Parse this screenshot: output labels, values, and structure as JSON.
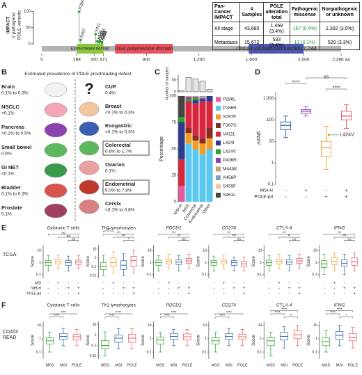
{
  "panel_a": {
    "label": "A",
    "ylabel": [
      "IMPACT",
      "# pathogenic",
      "POLE variants"
    ],
    "ylim": [
      0,
      110
    ],
    "yticks": [
      0,
      50,
      100
    ],
    "xlim": [
      0,
      2286
    ],
    "xticks": [
      0,
      268,
      400,
      471,
      800,
      {
        "value": 1200,
        "label": "1,200"
      },
      {
        "value": 1600,
        "label": "1,600"
      },
      {
        "value": 2000,
        "label": "2,000"
      },
      {
        "value": 2286,
        "label": "2,286 aa"
      }
    ],
    "lollipop_color": "#2ca02c",
    "lollipops": [
      {
        "label": "P286",
        "pos": 286,
        "count": 100
      },
      {
        "label": "S297",
        "pos": 297,
        "count": 12
      },
      {
        "label": "V411",
        "pos": 411,
        "count": 30
      },
      {
        "label": "L424",
        "pos": 424,
        "count": 8
      },
      {
        "label": "P436",
        "pos": 436,
        "count": 6
      },
      {
        "label": "M444",
        "pos": 444,
        "count": 10
      },
      {
        "label": "A456",
        "pos": 456,
        "count": 5
      },
      {
        "label": "S459",
        "pos": 459,
        "count": 4
      },
      {
        "label": "S461",
        "pos": 461,
        "count": 5
      }
    ],
    "domains": [
      {
        "name": "Exonuclease domain",
        "start": 268,
        "end": 471,
        "color": "#8cc63f"
      },
      {
        "name": "DNA polymerase domain",
        "start": 560,
        "end": 1000,
        "color": "#e8505b"
      },
      {
        "name": "Domain of unknown function 1,744",
        "start": 1580,
        "end": 2000,
        "color": "#4a56b0"
      }
    ],
    "table": {
      "header": [
        "Pan-Cancer IMPACT",
        "# Samples",
        "POLE alteration total",
        "Pathogenic missense",
        "Nonpathogenic or unknown"
      ],
      "rows": [
        [
          "All stage",
          "43,680",
          "1,469 (3.4%)",
          "167 (0.4%)",
          "1,302 (3.0%)"
        ],
        [
          "Metastasis",
          "15,672",
          "533 (3.4%)",
          "13 (0.1%)",
          "520 (3.3%)"
        ]
      ]
    }
  },
  "panel_b": {
    "label": "B",
    "title": "Estimated prevalence of POLE proofreading defect",
    "unknown_icon": "?",
    "left": [
      {
        "name": "Brain",
        "value": "0.1% to 0.3%",
        "color": "#f2f2f2"
      },
      {
        "name": "NSCLC",
        "value": "<0.1%",
        "color": "#f4a6b5"
      },
      {
        "name": "Pancreas",
        "value": "<0.1% to 0.5%",
        "color": "#8e44ad"
      },
      {
        "name": "Small bowel",
        "value": "0.6%",
        "color": "#5cb85c"
      },
      {
        "name": "GI NET",
        "value": "<0.1%",
        "color": "#3a9a4a"
      },
      {
        "name": "Bladder",
        "value": "0.1% to 0.3%",
        "color": "#d9534f"
      },
      {
        "name": "Prostate",
        "value": "0.1%",
        "color": "#a04060"
      }
    ],
    "right": [
      {
        "name": "CUP",
        "value": "0.4%"
      },
      {
        "name": "Breast",
        "value": "<0.1% to 0.3%",
        "color": "#f3c6a0"
      },
      {
        "name": "Esogastric",
        "value": "<0.1% to 0.3%",
        "color": "#3a5fb0"
      },
      {
        "name": "Colorectal",
        "value": "0.6% to 1.7%",
        "color": "#5cb85c",
        "boxed": true
      },
      {
        "name": "Ovarian",
        "value": "0.1%",
        "color": "#e8a0a0"
      },
      {
        "name": "Endometrial",
        "value": "5.0% to 7.8%",
        "color": "#c0392b",
        "boxed": true
      },
      {
        "name": "Cervix",
        "value": "<0.1% to 0.8%",
        "color": "#d98080"
      }
    ]
  },
  "chart_data": {
    "type": "stacked_bar",
    "label": "C",
    "categories": [
      "MSI-H",
      "MSS",
      "Colorectal",
      "Endometrial",
      "Other"
    ],
    "samples": [
      5,
      60,
      55,
      45,
      10
    ],
    "samples_color": "#e6e6e6",
    "samples_label": "Number of samples",
    "samples_ylim": [
      0,
      70
    ],
    "samples_yticks": [
      0,
      50
    ],
    "ylabel": "Percentage",
    "ylim": [
      0,
      100
    ],
    "yticks": [
      0,
      25,
      50,
      75,
      100
    ],
    "series": [
      {
        "name": "P286L",
        "color": "#e75aa0",
        "values": [
          15,
          0,
          0,
          0,
          0
        ]
      },
      {
        "name": "P286R",
        "color": "#5bc8ef",
        "values": [
          0,
          55,
          50,
          45,
          50
        ]
      },
      {
        "name": "S297F",
        "color": "#f39c24",
        "values": [
          0,
          10,
          8,
          10,
          10
        ]
      },
      {
        "name": "F367S",
        "color": "#8b2c24",
        "values": [
          0,
          5,
          5,
          5,
          10
        ]
      },
      {
        "name": "V411L",
        "color": "#d7263d",
        "values": [
          25,
          25,
          30,
          35,
          25
        ]
      },
      {
        "name": "L424I",
        "color": "#2b3b8f",
        "values": [
          35,
          0,
          3,
          2,
          5
        ]
      },
      {
        "name": "L424V",
        "color": "#2ca02c",
        "values": [
          5,
          2,
          2,
          0,
          0
        ]
      },
      {
        "name": "P436R",
        "color": "#8e44ad",
        "values": [
          0,
          2,
          1,
          1,
          0
        ]
      },
      {
        "name": "M444K",
        "color": "#c4a27a",
        "values": [
          0,
          1,
          1,
          1,
          0
        ]
      },
      {
        "name": "A456P",
        "color": "#7f9fbf",
        "values": [
          0,
          0,
          0,
          1,
          0
        ]
      },
      {
        "name": "S459F",
        "color": "#f7c6a0",
        "values": [
          0,
          0,
          0,
          0,
          0
        ]
      },
      {
        "name": "S461L",
        "color": "#444444",
        "values": [
          20,
          0,
          0,
          0,
          0
        ]
      }
    ]
  },
  "panel_d": {
    "label": "D",
    "ylabel": "mt/Mb",
    "log": true,
    "ylim": [
      0.1,
      2000
    ],
    "yticks": [
      0.1,
      1,
      10,
      100,
      {
        "value": 1000,
        "label": "1,000"
      }
    ],
    "colors": [
      "#2b5fa8",
      "#8e44ad",
      "#f39c24",
      "#e8505b"
    ],
    "boxes": [
      [
        15,
        35,
        55,
        80,
        150
      ],
      [
        150,
        200,
        250,
        300,
        400
      ],
      [
        0.5,
        2,
        5,
        10,
        50
      ],
      [
        40,
        100,
        150,
        250,
        500
      ]
    ],
    "rows": [
      {
        "name": "MSI-H",
        "values": [
          "-",
          "+",
          "-",
          "+"
        ]
      },
      {
        "name": "POLE-pd",
        "values": [
          "-",
          "-",
          "+",
          "+"
        ]
      }
    ],
    "brackets": [
      {
        "from": 1,
        "to": 3,
        "text": "ns"
      },
      {
        "from": 0,
        "to": 1,
        "text": "****"
      },
      {
        "from": 2,
        "to": 3,
        "text": "****"
      }
    ],
    "callout": {
      "text": "L424V",
      "group": 2,
      "value": 20
    }
  },
  "panel_e": {
    "label": "E",
    "row_label": [
      "TCGA"
    ],
    "ylabel": "Score",
    "colors": [
      "#2ca02c",
      "#f39c24",
      "#2b5fa8",
      "#e8505b"
    ],
    "rows": [
      {
        "name": "MSI",
        "values": [
          "-",
          "+",
          "-",
          "-"
        ]
      },
      {
        "name": "TMB-H",
        "values": [
          "-",
          "-",
          "+",
          "+"
        ]
      },
      {
        "name": "POLE-pd",
        "values": [
          "-",
          "-",
          "-",
          "+"
        ]
      }
    ],
    "panels": [
      {
        "title": "Cytotoxic T cells",
        "italic": false,
        "ylim": [
          0.05,
          30
        ],
        "yticks": [
          0.1,
          1,
          10
        ],
        "boxes": [
          [
            0.2,
            0.6,
            1,
            1.5,
            4
          ],
          [
            0.3,
            0.8,
            1.2,
            1.8,
            4
          ],
          [
            0.2,
            0.6,
            1,
            1.5,
            3.5
          ],
          [
            0.3,
            0.7,
            1.1,
            1.6,
            4
          ]
        ],
        "brackets": [
          {
            "from": 0,
            "to": 3,
            "text": "ns"
          },
          {
            "from": 1,
            "to": 3,
            "text": "ns"
          },
          {
            "from": 2,
            "to": 3,
            "text": "ns"
          }
        ]
      },
      {
        "title": "Th1 lymphocytes",
        "italic": false,
        "ylim": [
          0.005,
          30
        ],
        "yticks": [
          0.01,
          0.1,
          1,
          10
        ],
        "boxes": [
          [
            0.01,
            0.05,
            0.1,
            0.3,
            2
          ],
          [
            0.02,
            0.1,
            0.3,
            1,
            5
          ],
          [
            0.01,
            0.05,
            0.15,
            0.5,
            3
          ],
          [
            0.02,
            0.1,
            0.5,
            1.5,
            8
          ]
        ],
        "brackets": [
          {
            "from": 0,
            "to": 1,
            "text": "***"
          },
          {
            "from": 0,
            "to": 3,
            "text": "***"
          },
          {
            "from": 1,
            "to": 3,
            "text": "***"
          },
          {
            "from": 2,
            "to": 3,
            "text": "*"
          }
        ]
      },
      {
        "title": "PDCD1",
        "italic": true,
        "ylim": [
          0.05,
          30
        ],
        "yticks": [
          0.1,
          1,
          10
        ],
        "boxes": [
          [
            0.2,
            0.6,
            1,
            1.6,
            4
          ],
          [
            0.3,
            0.8,
            1.3,
            2,
            5
          ],
          [
            0.2,
            0.7,
            1.1,
            1.7,
            4
          ],
          [
            0.3,
            0.9,
            1.4,
            2.2,
            5
          ]
        ],
        "brackets": [
          {
            "from": 0,
            "to": 3,
            "text": "***"
          },
          {
            "from": 1,
            "to": 3,
            "text": "**"
          },
          {
            "from": 2,
            "to": 3,
            "text": "ns"
          }
        ]
      },
      {
        "title": "CD274",
        "italic": true,
        "ylim": [
          0.05,
          30
        ],
        "yticks": [
          0.1,
          1,
          10
        ],
        "boxes": [
          [
            0.2,
            0.6,
            1,
            1.5,
            3.5
          ],
          [
            0.3,
            0.8,
            1.3,
            2,
            4.5
          ],
          [
            0.2,
            0.6,
            1,
            1.5,
            3
          ],
          [
            0.2,
            0.5,
            0.8,
            1.3,
            3
          ]
        ],
        "brackets": [
          {
            "from": 0,
            "to": 3,
            "text": "***"
          },
          {
            "from": 1,
            "to": 3,
            "text": "***"
          },
          {
            "from": 2,
            "to": 3,
            "text": "ns"
          }
        ]
      },
      {
        "title": "CTLA-4",
        "italic": true,
        "ylim": [
          0.05,
          30
        ],
        "yticks": [
          0.1,
          1,
          10
        ],
        "boxes": [
          [
            0.2,
            0.6,
            1,
            1.6,
            4
          ],
          [
            0.3,
            0.8,
            1.3,
            2,
            5
          ],
          [
            0.2,
            0.7,
            1.1,
            1.7,
            4
          ],
          [
            0.3,
            0.9,
            1.4,
            2.2,
            5
          ]
        ],
        "brackets": [
          {
            "from": 0,
            "to": 3,
            "text": "***"
          },
          {
            "from": 1,
            "to": 3,
            "text": "**"
          },
          {
            "from": 2,
            "to": 3,
            "text": "ns"
          }
        ]
      },
      {
        "title": "IFNG",
        "italic": true,
        "ylim": [
          0.05,
          30
        ],
        "yticks": [
          0.1,
          1,
          10
        ],
        "boxes": [
          [
            0.1,
            0.4,
            0.8,
            1.5,
            5
          ],
          [
            0.2,
            0.7,
            1.3,
            2.5,
            7
          ],
          [
            0.1,
            0.5,
            0.9,
            1.8,
            5
          ],
          [
            0.2,
            0.6,
            1.2,
            2.5,
            7
          ]
        ],
        "brackets": [
          {
            "from": 0,
            "to": 3,
            "text": "***"
          },
          {
            "from": 1,
            "to": 3,
            "text": "***"
          },
          {
            "from": 2,
            "to": 3,
            "text": "ns"
          }
        ]
      }
    ]
  },
  "panel_f": {
    "label": "F",
    "row_label": [
      "COAD/",
      "READ"
    ],
    "ylabel": "Score",
    "categories": [
      "MSS",
      "MSI",
      "POLE"
    ],
    "colors": [
      "#2ca02c",
      "#2b5fa8",
      "#e8505b"
    ],
    "panels": [
      {
        "title": "Cytotoxic T cells",
        "italic": false,
        "ylim": [
          0.03,
          20
        ],
        "yticks": [
          0.1,
          1,
          10
        ],
        "boxes": [
          [
            0.1,
            0.4,
            0.7,
            1.2,
            3
          ],
          [
            0.3,
            0.9,
            1.5,
            2.5,
            6
          ],
          [
            0.3,
            0.8,
            1.4,
            2.2,
            5
          ]
        ],
        "brackets": [
          {
            "from": 0,
            "to": 2,
            "text": "****"
          },
          {
            "from": 0,
            "to": 1,
            "text": "****"
          }
        ]
      },
      {
        "title": "Th1 lymphocytes",
        "italic": false,
        "ylim": [
          0.005,
          20
        ],
        "yticks": [
          0.01,
          0.1,
          1,
          10
        ],
        "boxes": [
          [
            0.01,
            0.05,
            0.1,
            0.3,
            2
          ],
          [
            0.05,
            0.2,
            0.5,
            1,
            4
          ],
          [
            0.05,
            0.2,
            0.5,
            1.2,
            4
          ]
        ],
        "brackets": [
          {
            "from": 0,
            "to": 2,
            "text": "****"
          },
          {
            "from": 0,
            "to": 1,
            "text": "****"
          }
        ]
      },
      {
        "title": "PDCD1",
        "italic": true,
        "ylim": [
          0.03,
          20
        ],
        "yticks": [
          0.1,
          1,
          10
        ],
        "boxes": [
          [
            0.1,
            0.4,
            0.8,
            1.3,
            3
          ],
          [
            0.3,
            0.9,
            1.5,
            2.5,
            5
          ],
          [
            0.3,
            0.8,
            1.4,
            2.3,
            5
          ]
        ],
        "brackets": [
          {
            "from": 0,
            "to": 2,
            "text": "****"
          },
          {
            "from": 0,
            "to": 1,
            "text": "****"
          }
        ]
      },
      {
        "title": "CD274",
        "italic": true,
        "ylim": [
          0.03,
          20
        ],
        "yticks": [
          0.1,
          1,
          10
        ],
        "boxes": [
          [
            0.1,
            0.4,
            0.7,
            1.2,
            3
          ],
          [
            0.3,
            0.9,
            1.5,
            2.5,
            6
          ],
          [
            0.3,
            0.9,
            1.4,
            2.2,
            5
          ]
        ],
        "brackets": [
          {
            "from": 0,
            "to": 2,
            "text": "****"
          },
          {
            "from": 0,
            "to": 1,
            "text": "****"
          }
        ]
      },
      {
        "title": "CTLA-4",
        "italic": true,
        "ylim": [
          0.03,
          20
        ],
        "yticks": [
          0.1,
          1,
          10
        ],
        "boxes": [
          [
            0.05,
            0.3,
            0.7,
            1.2,
            3
          ],
          [
            0.2,
            0.8,
            1.5,
            3,
            8
          ],
          [
            0.3,
            1,
            2,
            4,
            10
          ]
        ],
        "brackets": [
          {
            "from": 0,
            "to": 2,
            "text": "****"
          },
          {
            "from": 0,
            "to": 1,
            "text": "****"
          },
          {
            "from": 1,
            "to": 2,
            "text": "**"
          }
        ]
      },
      {
        "title": "IFNG",
        "italic": true,
        "ylim": [
          0.03,
          20
        ],
        "yticks": [
          0.1,
          1,
          10
        ],
        "boxes": [
          [
            0.1,
            0.3,
            0.6,
            1.2,
            4
          ],
          [
            0.3,
            0.9,
            1.8,
            3.5,
            10
          ],
          [
            0.2,
            0.7,
            1.2,
            2.5,
            7
          ]
        ],
        "brackets": [
          {
            "from": 0,
            "to": 2,
            "text": "****"
          },
          {
            "from": 0,
            "to": 1,
            "text": "****"
          },
          {
            "from": 1,
            "to": 2,
            "text": "*"
          }
        ]
      }
    ]
  }
}
